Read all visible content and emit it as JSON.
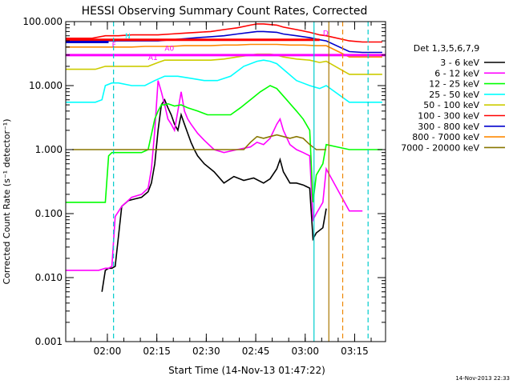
{
  "chart_data": {
    "type": "line",
    "title": "HESSI Observing Summary Count Rates, Corrected",
    "xlabel": "Start Time (14-Nov-13 01:47:22)",
    "ylabel": "Corrected Count Rate (s⁻¹ detector⁻¹)",
    "yscale": "log",
    "ylim": [
      0.001,
      100
    ],
    "xlim_minutes": [
      0,
      97
    ],
    "x_ticks": [
      {
        "min": 12.63,
        "label": "02:00"
      },
      {
        "min": 27.63,
        "label": "02:15"
      },
      {
        "min": 42.63,
        "label": "02:30"
      },
      {
        "min": 57.63,
        "label": "02:45"
      },
      {
        "min": 72.63,
        "label": "03:00"
      },
      {
        "min": 87.63,
        "label": "03:15"
      }
    ],
    "y_ticks": [
      {
        "v": 0.001,
        "label": "0.001"
      },
      {
        "v": 0.01,
        "label": "0.010"
      },
      {
        "v": 0.1,
        "label": "0.100"
      },
      {
        "v": 1,
        "label": "1.000"
      },
      {
        "v": 10,
        "label": "10.000"
      },
      {
        "v": 100,
        "label": "100.000"
      }
    ],
    "legend_title": "Det 1,3,5,6,7,9",
    "legend_position": "right",
    "grid": false,
    "timestamp": "14-Nov-2013 22:33",
    "series": [
      {
        "name": "3 - 6 keV",
        "color": "#000000",
        "x": [
          11,
          12,
          13,
          14,
          15,
          17,
          19,
          21,
          23,
          25,
          26,
          27,
          28,
          29,
          30,
          31,
          32,
          33,
          34,
          35,
          36,
          37,
          38,
          39,
          40,
          42,
          45,
          48,
          51,
          54,
          57,
          60,
          62,
          64,
          65,
          66,
          68,
          70,
          72,
          74,
          75,
          76,
          78,
          79
        ],
        "y": [
          0.006,
          0.013,
          0.014,
          0.014,
          0.015,
          0.13,
          0.16,
          0.17,
          0.18,
          0.22,
          0.3,
          0.6,
          2.0,
          5.0,
          6.0,
          4.5,
          3.5,
          2.5,
          2.0,
          3.5,
          2.5,
          1.8,
          1.3,
          1.0,
          0.8,
          0.6,
          0.45,
          0.3,
          0.38,
          0.33,
          0.36,
          0.3,
          0.35,
          0.5,
          0.7,
          0.45,
          0.3,
          0.3,
          0.28,
          0.25,
          0.04,
          0.05,
          0.06,
          0.12
        ]
      },
      {
        "name": "6 - 12 keV",
        "color": "#ff00ff",
        "x": [
          0,
          2,
          4,
          6,
          8,
          10,
          12,
          13,
          14,
          15,
          17,
          20,
          23,
          25,
          26,
          27,
          28,
          29,
          30,
          31,
          32,
          33,
          34,
          35,
          36,
          37,
          38,
          40,
          42,
          45,
          48,
          52,
          56,
          58,
          60,
          62,
          64,
          65,
          66,
          68,
          70,
          72,
          74,
          75,
          76,
          78,
          79,
          86,
          90
        ],
        "y": [
          0.013,
          0.013,
          0.013,
          0.013,
          0.013,
          0.013,
          0.014,
          0.014,
          0.015,
          0.09,
          0.13,
          0.18,
          0.2,
          0.25,
          0.5,
          2.0,
          12.0,
          8.0,
          5.0,
          3.0,
          2.5,
          2.0,
          4.0,
          8.0,
          4.0,
          3.0,
          2.5,
          1.8,
          1.4,
          1.0,
          0.9,
          1.0,
          1.1,
          1.3,
          1.2,
          1.5,
          2.5,
          3.0,
          2.0,
          1.2,
          1.0,
          0.9,
          0.8,
          0.08,
          0.1,
          0.15,
          0.5,
          0.11,
          0.11
        ]
      },
      {
        "name": "12 - 25 keV",
        "color": "#00ff00",
        "x": [
          0,
          2,
          4,
          6,
          8,
          10,
          12,
          13,
          14,
          15,
          17,
          19,
          21,
          23,
          25,
          27,
          28,
          29,
          30,
          31,
          32,
          33,
          35,
          37,
          40,
          43,
          46,
          50,
          53,
          56,
          59,
          62,
          64,
          67,
          70,
          72,
          74,
          75,
          76,
          78,
          79,
          86,
          88,
          90,
          92,
          94,
          96
        ],
        "y": [
          0.15,
          0.15,
          0.15,
          0.15,
          0.15,
          0.15,
          0.15,
          0.8,
          0.9,
          0.9,
          0.9,
          0.9,
          0.9,
          0.9,
          1.0,
          3.0,
          4.0,
          5.0,
          5.0,
          5.2,
          5.0,
          4.8,
          5.0,
          4.5,
          4.0,
          3.5,
          3.5,
          3.5,
          4.5,
          6.0,
          8.0,
          10.0,
          9.0,
          6.0,
          4.0,
          3.0,
          2.0,
          0.15,
          0.4,
          0.6,
          1.2,
          1.0,
          1.0,
          1.0,
          1.0,
          1.0,
          1.0
        ]
      },
      {
        "name": "25 - 50 keV",
        "color": "#00ffff",
        "x": [
          0,
          3,
          6,
          9,
          11,
          12,
          14,
          16,
          20,
          24,
          27,
          30,
          34,
          38,
          42,
          46,
          50,
          54,
          58,
          60,
          62,
          64,
          66,
          70,
          74,
          77,
          79,
          86,
          90,
          96
        ],
        "y": [
          5.5,
          5.5,
          5.5,
          5.5,
          6.0,
          10.0,
          11.0,
          11.0,
          10.0,
          10.0,
          12.0,
          14.0,
          14.0,
          13.0,
          12.0,
          12.0,
          14.0,
          20.0,
          24.0,
          25.0,
          24.0,
          22.0,
          18.0,
          12.0,
          10.0,
          9.0,
          10.0,
          5.5,
          5.5,
          5.5
        ]
      },
      {
        "name": "50 - 100 keV",
        "color": "#cccc00",
        "x": [
          0,
          3,
          6,
          9,
          12,
          15,
          20,
          25,
          28,
          30,
          33,
          36,
          40,
          44,
          48,
          52,
          56,
          58,
          60,
          62,
          64,
          66,
          70,
          74,
          77,
          79,
          86,
          90,
          96
        ],
        "y": [
          18.0,
          18.0,
          18.0,
          18.0,
          20.0,
          20.0,
          20.0,
          20.0,
          23.0,
          25.0,
          25.0,
          25.0,
          25.0,
          25.0,
          26.0,
          28.0,
          30.0,
          31.0,
          31.0,
          31.0,
          30.0,
          28.0,
          26.0,
          25.0,
          23.0,
          24.0,
          15.0,
          15.0,
          15.0
        ]
      },
      {
        "name": "100 - 300 keV",
        "color": "#ff0000",
        "x": [
          0,
          4,
          8,
          12,
          16,
          20,
          24,
          28,
          32,
          36,
          40,
          44,
          48,
          52,
          56,
          58,
          60,
          62,
          64,
          66,
          70,
          74,
          77,
          79,
          86,
          90,
          96
        ],
        "y": [
          55.0,
          55.0,
          55.0,
          60.0,
          60.0,
          62.0,
          62.0,
          62.0,
          64.0,
          66.0,
          68.0,
          70.0,
          75.0,
          80.0,
          88.0,
          92.0,
          92.0,
          90.0,
          88.0,
          82.0,
          75.0,
          68.0,
          62.0,
          60.0,
          50.0,
          48.0,
          48.0
        ]
      },
      {
        "name": "300 - 800 keV",
        "color": "#0000cc",
        "x": [
          0,
          4,
          8,
          12,
          16,
          20,
          24,
          28,
          32,
          36,
          40,
          44,
          48,
          52,
          56,
          58,
          60,
          62,
          64,
          66,
          70,
          74,
          77,
          79,
          86,
          90,
          96
        ],
        "y": [
          48.0,
          48.0,
          48.0,
          50.0,
          50.0,
          50.0,
          50.0,
          50.0,
          52.0,
          54.0,
          56.0,
          58.0,
          60.0,
          64.0,
          68.0,
          70.0,
          70.0,
          69.0,
          68.0,
          64.0,
          60.0,
          56.0,
          52.0,
          50.0,
          34.0,
          33.0,
          33.0
        ]
      },
      {
        "name": "800 - 7000 keV",
        "color": "#ff8800",
        "x": [
          0,
          4,
          8,
          12,
          16,
          20,
          24,
          28,
          32,
          36,
          40,
          44,
          48,
          52,
          56,
          60,
          64,
          68,
          72,
          76,
          79,
          86,
          90,
          96
        ],
        "y": [
          40.0,
          40.0,
          40.0,
          40.0,
          40.0,
          40.0,
          41.0,
          41.0,
          41.0,
          42.0,
          42.0,
          42.0,
          43.0,
          43.0,
          44.0,
          44.0,
          44.0,
          43.0,
          43.0,
          42.0,
          42.0,
          28.0,
          28.0,
          28.0
        ]
      },
      {
        "name": "7000 - 20000 keV",
        "color": "#887700",
        "x": [
          2,
          6,
          10,
          14,
          18,
          22,
          26,
          30,
          34,
          38,
          42,
          46,
          50,
          54,
          56,
          58,
          60,
          62,
          64,
          66,
          68,
          70,
          72,
          74,
          76,
          78,
          79
        ],
        "y": [
          1.0,
          1.0,
          1.0,
          1.0,
          1.0,
          1.0,
          1.0,
          1.0,
          1.0,
          1.0,
          1.0,
          1.0,
          1.0,
          1.0,
          1.3,
          1.6,
          1.5,
          1.6,
          1.7,
          1.6,
          1.5,
          1.6,
          1.5,
          1.2,
          1.0,
          1.0,
          1.0
        ]
      }
    ],
    "hlines": [
      {
        "y": 30,
        "x0": 0,
        "x1": 97,
        "color": "#ff00ff"
      },
      {
        "y": 52,
        "x0": 0,
        "x1": 77,
        "color": "#ff0000"
      },
      {
        "y": 48,
        "x0": 0,
        "x1": 13,
        "color": "#0000cc"
      }
    ],
    "vlines": [
      {
        "x": 14.5,
        "color": "#00cccc",
        "style": "dashed"
      },
      {
        "x": 75.3,
        "color": "#00cccc",
        "style": "solid"
      },
      {
        "x": 79.8,
        "color": "#aa7700",
        "style": "solid"
      },
      {
        "x": 84.0,
        "color": "#ee8800",
        "style": "dashed"
      },
      {
        "x": 91.7,
        "color": "#00cccc",
        "style": "dashed"
      }
    ],
    "annotations": [
      {
        "text": "N",
        "x": 18,
        "y": 55,
        "color": "#00ffff"
      },
      {
        "text": "F",
        "x": 14,
        "y": 40,
        "color": "#ff00ff"
      },
      {
        "text": "A1",
        "x": 25,
        "y": 25,
        "color": "#ff00ff"
      },
      {
        "text": "A0",
        "x": 30,
        "y": 35,
        "color": "#ff00ff"
      },
      {
        "text": "D",
        "x": 78,
        "y": 60,
        "color": "#ff00ff"
      }
    ]
  }
}
